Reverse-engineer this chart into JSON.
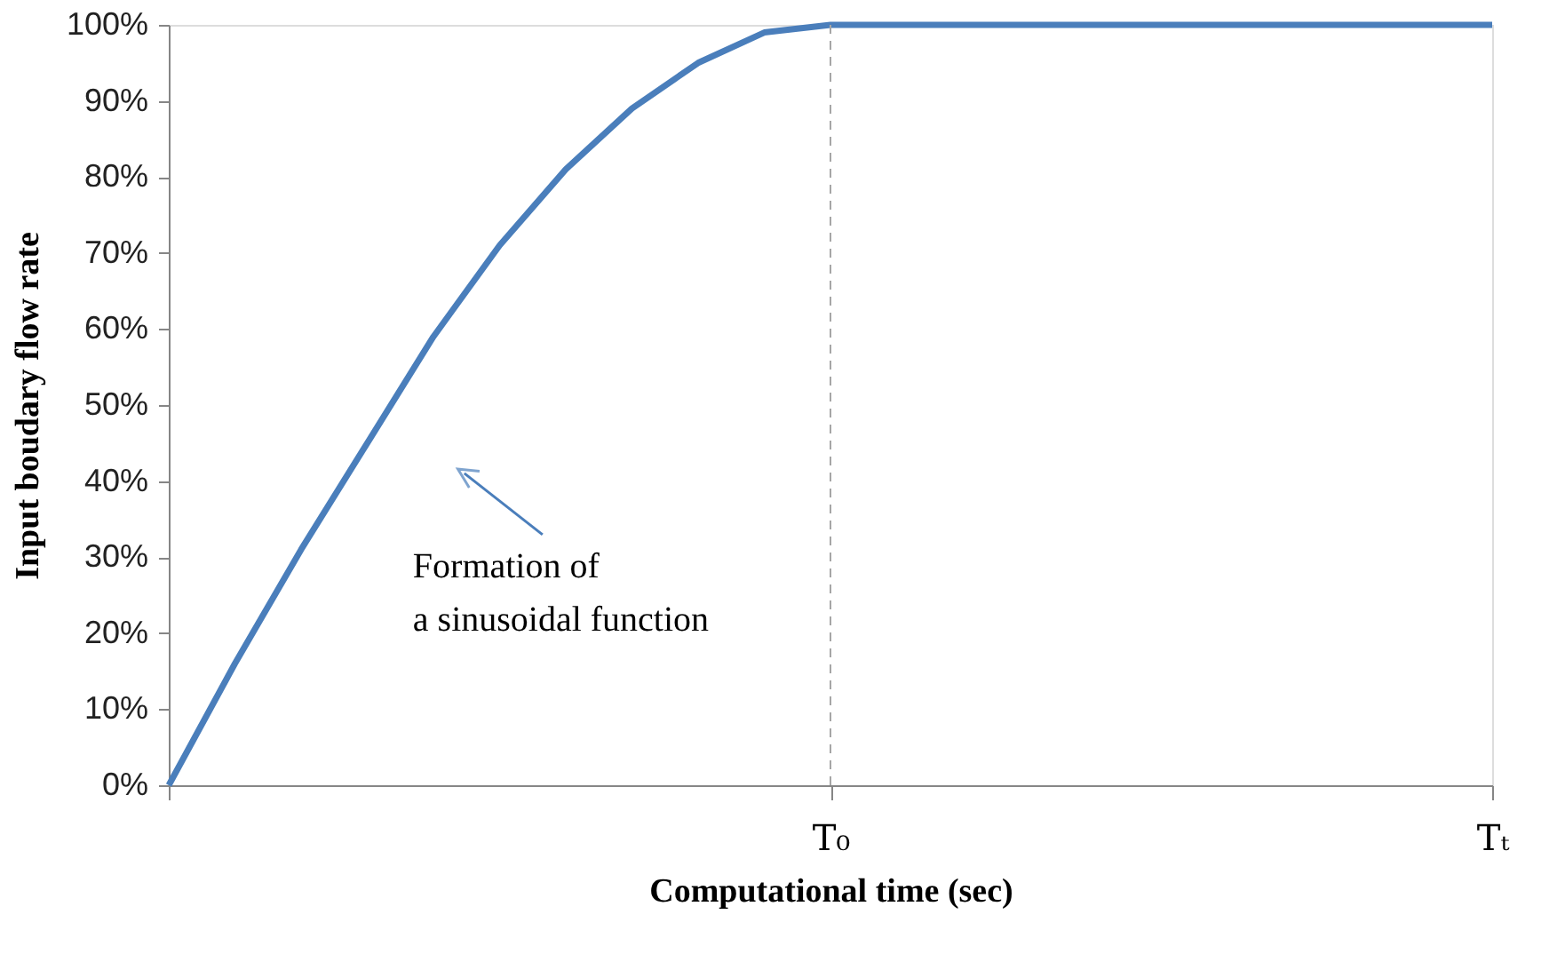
{
  "chart_data": {
    "type": "line",
    "xlabel": "Computational time (sec)",
    "ylabel": "Input boudary  flow rate",
    "categories": [
      null,
      null,
      null,
      null,
      null,
      null,
      null,
      null,
      null,
      null,
      "T₀",
      null,
      null,
      null,
      null,
      null,
      null,
      null,
      null,
      null,
      "Tₜ"
    ],
    "series": [
      {
        "color": "#4a7ebb",
        "values": [
          0,
          16,
          31,
          45,
          59,
          71,
          81,
          89,
          95,
          99,
          100,
          100,
          100,
          100,
          100,
          100,
          100,
          100,
          100,
          100,
          100
        ]
      }
    ],
    "ylim": [
      0,
      100
    ],
    "yticks": [
      {
        "value": 0,
        "label": "0%"
      },
      {
        "value": 10,
        "label": "10%"
      },
      {
        "value": 20,
        "label": "20%"
      },
      {
        "value": 30,
        "label": "30%"
      },
      {
        "value": 40,
        "label": "40%"
      },
      {
        "value": 50,
        "label": "50%"
      },
      {
        "value": 60,
        "label": "60%"
      },
      {
        "value": 70,
        "label": "70%"
      },
      {
        "value": 80,
        "label": "80%"
      },
      {
        "value": 90,
        "label": "90%"
      },
      {
        "value": 100,
        "label": "100%"
      }
    ],
    "ref_lines": [
      {
        "axis": "x",
        "value": "T₀",
        "color": "#a6a6a6",
        "line_style": "dashed"
      }
    ],
    "annotations": [
      "Formation of\na sinusoidal function"
    ],
    "grid": false,
    "marker": "none",
    "line_style": "solid"
  }
}
